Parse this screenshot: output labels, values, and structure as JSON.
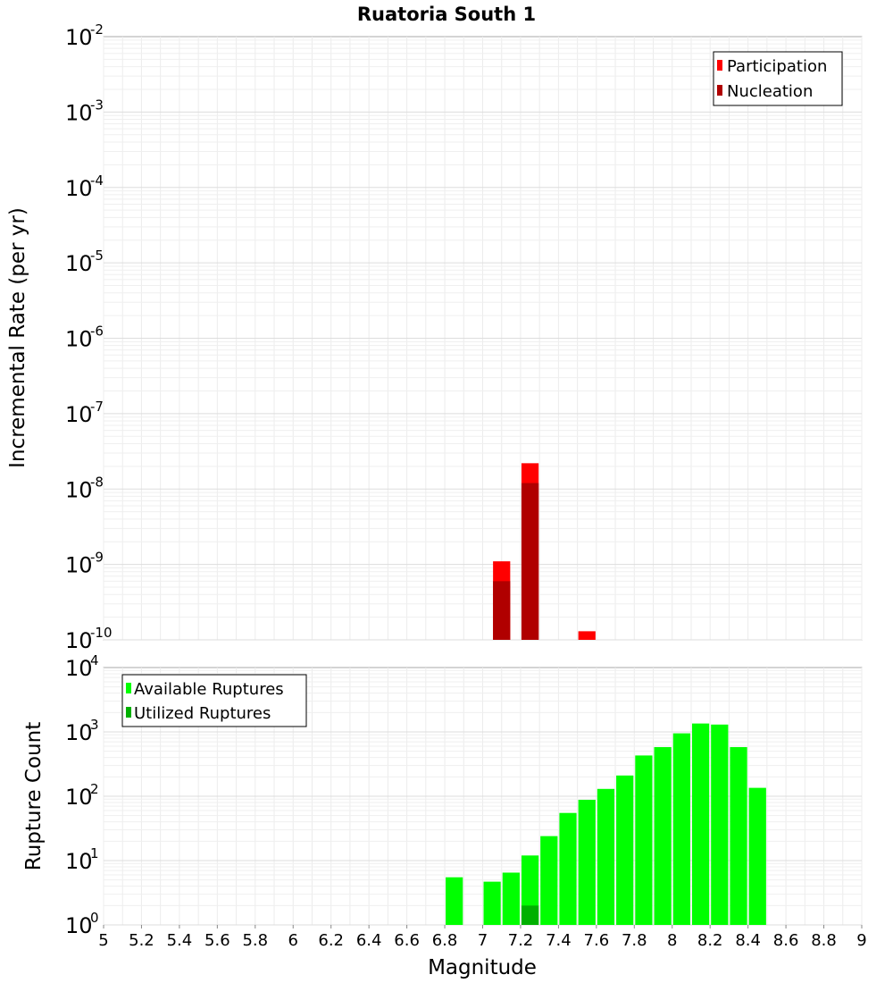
{
  "chart_data": [
    {
      "type": "bar",
      "title": "Ruatoria South 1",
      "xlabel": "",
      "ylabel": "Incremental Rate (per yr)",
      "yscale": "log",
      "xlim": [
        5,
        9
      ],
      "ylim_exponents": [
        -10,
        -2
      ],
      "legend_position": "top-right",
      "bin_width": 0.1,
      "series": [
        {
          "name": "Participation",
          "color": "#ff0000",
          "x": [
            7.1,
            7.25,
            7.55
          ],
          "values": [
            1.1e-09,
            2.2e-08,
            1.3e-10
          ]
        },
        {
          "name": "Nucleation",
          "color": "#b00000",
          "x": [
            7.1,
            7.25
          ],
          "values": [
            6e-10,
            1.2e-08
          ]
        }
      ]
    },
    {
      "type": "bar",
      "title": "",
      "xlabel": "Magnitude",
      "ylabel": "Rupture Count",
      "yscale": "log",
      "xlim": [
        5,
        9
      ],
      "ylim_exponents": [
        0,
        4
      ],
      "legend_position": "top-left",
      "bin_width": 0.1,
      "series": [
        {
          "name": "Available Ruptures",
          "color": "#00ff00",
          "x": [
            6.85,
            7.05,
            7.15,
            7.25,
            7.35,
            7.45,
            7.55,
            7.65,
            7.75,
            7.85,
            7.95,
            8.05,
            8.15,
            8.25,
            8.35,
            8.45
          ],
          "values": [
            5.5,
            4.7,
            6.5,
            12,
            24,
            55,
            88,
            130,
            210,
            430,
            580,
            950,
            1350,
            1300,
            580,
            135
          ]
        },
        {
          "name": "Utilized Ruptures",
          "color": "#00b000",
          "x": [
            7.15,
            7.25,
            7.55
          ],
          "values": [
            1,
            2,
            1
          ]
        }
      ]
    }
  ],
  "x_tick_labels": [
    "5",
    "5.2",
    "5.4",
    "5.6",
    "5.8",
    "6",
    "6.2",
    "6.4",
    "6.6",
    "6.8",
    "7",
    "7.2",
    "7.4",
    "7.6",
    "7.8",
    "8",
    "8.2",
    "8.4",
    "8.6",
    "8.8",
    "9"
  ]
}
